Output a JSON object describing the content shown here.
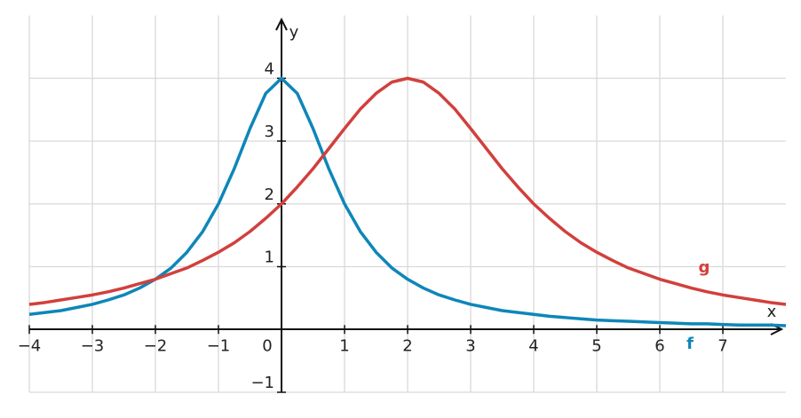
{
  "chart_data": {
    "type": "line",
    "x": [
      -4,
      -3.75,
      -3.5,
      -3.25,
      -3,
      -2.75,
      -2.5,
      -2.25,
      -2,
      -1.75,
      -1.5,
      -1.25,
      -1,
      -0.75,
      -0.5,
      -0.25,
      0,
      0.25,
      0.5,
      0.75,
      1,
      1.25,
      1.5,
      1.75,
      2,
      2.25,
      2.5,
      2.75,
      3,
      3.25,
      3.5,
      3.75,
      4,
      4.25,
      4.5,
      4.75,
      5,
      5.25,
      5.5,
      5.75,
      6,
      6.25,
      6.5,
      6.75,
      7,
      7.25,
      7.5,
      7.75,
      8
    ],
    "series": [
      {
        "name": "f",
        "color": "#0e86b9",
        "values": [
          0.24,
          0.27,
          0.3,
          0.35,
          0.4,
          0.47,
          0.55,
          0.66,
          0.8,
          0.98,
          1.23,
          1.56,
          2,
          2.56,
          3.2,
          3.76,
          4,
          3.76,
          3.2,
          2.56,
          2,
          1.56,
          1.23,
          0.98,
          0.8,
          0.66,
          0.55,
          0.47,
          0.4,
          0.35,
          0.3,
          0.27,
          0.24,
          0.21,
          0.19,
          0.17,
          0.15,
          0.14,
          0.13,
          0.12,
          0.11,
          0.1,
          0.09,
          0.09,
          0.08,
          0.07,
          0.07,
          0.07,
          0.06
        ]
      },
      {
        "name": "g",
        "color": "#d1403c",
        "values": [
          0.4,
          0.43,
          0.47,
          0.51,
          0.55,
          0.6,
          0.66,
          0.73,
          0.8,
          0.89,
          0.98,
          1.1,
          1.23,
          1.38,
          1.56,
          1.77,
          2,
          2.27,
          2.56,
          2.88,
          3.2,
          3.51,
          3.76,
          3.94,
          4,
          3.94,
          3.76,
          3.51,
          3.2,
          2.88,
          2.56,
          2.27,
          2,
          1.77,
          1.56,
          1.38,
          1.23,
          1.1,
          0.98,
          0.89,
          0.8,
          0.73,
          0.66,
          0.6,
          0.55,
          0.51,
          0.47,
          0.43,
          0.4
        ]
      }
    ],
    "x_label": "x",
    "y_label": "y",
    "xlim": [
      -4,
      8
    ],
    "ylim": [
      -1,
      5
    ],
    "xticks": [
      {
        "value": -4,
        "label": "−4"
      },
      {
        "value": -3,
        "label": "−3"
      },
      {
        "value": -2,
        "label": "−2"
      },
      {
        "value": -1,
        "label": "−1"
      },
      0,
      1,
      2,
      3,
      4,
      5,
      6,
      7
    ],
    "yticks": [
      {
        "value": -1,
        "label": "−1"
      },
      1,
      2,
      3,
      4
    ],
    "grid": true
  }
}
